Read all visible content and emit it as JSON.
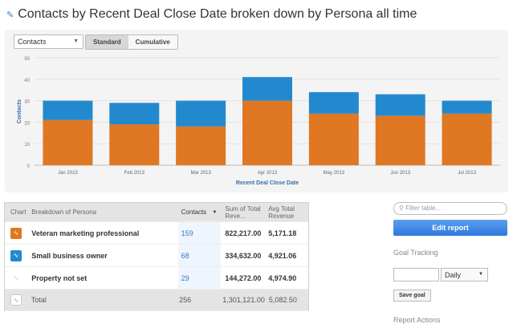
{
  "title": "Contacts by Recent Deal Close Date broken down by Persona all time",
  "controls": {
    "metric": "Contacts",
    "standard": "Standard",
    "cumulative": "Cumulative"
  },
  "chart_data": {
    "type": "bar",
    "stacked": true,
    "categories": [
      "Jan 2013",
      "Feb 2013",
      "Mar 2013",
      "Apr 2013",
      "May 2013",
      "Jun 2013",
      "Jul 2013"
    ],
    "series": [
      {
        "name": "Veteran marketing professional",
        "color": "#e07722",
        "values": [
          21,
          19,
          18,
          30,
          24,
          23,
          24
        ]
      },
      {
        "name": "Small business owner",
        "color": "#2389cf",
        "values": [
          9,
          10,
          12,
          11,
          10,
          10,
          6
        ]
      }
    ],
    "xlabel": "Recent Deal Close Date",
    "ylabel": "Contacts",
    "ylim": [
      0,
      50
    ],
    "yticks": [
      0,
      10,
      20,
      30,
      40,
      50
    ],
    "grid": true
  },
  "table": {
    "headers": {
      "chart": "Chart",
      "breakdown": "Breakdown of Persona",
      "contacts": "Contacts",
      "sum": "Sum of Total Reve...",
      "avg": "Avg Total Revenue"
    },
    "rows": [
      {
        "name": "Veteran marketing professional",
        "contacts": "159",
        "sum": "822,217.00",
        "avg": "5,171.18",
        "color": "#e07722"
      },
      {
        "name": "Small business owner",
        "contacts": "68",
        "sum": "334,632.00",
        "avg": "4,921.06",
        "color": "#2389cf"
      },
      {
        "name": "Property not set",
        "contacts": "29",
        "sum": "144,272.00",
        "avg": "4,974.90",
        "color": "#ffffff"
      }
    ],
    "total": {
      "name": "Total",
      "contacts": "256",
      "sum": "1,301,121.00",
      "avg": "5,082.50"
    }
  },
  "sidebar": {
    "filter_placeholder": "Filter table...",
    "edit": "Edit report",
    "goal_tracking": "Goal Tracking",
    "period": "Daily",
    "save_goal": "Save goal",
    "report_actions": "Report Actions"
  }
}
